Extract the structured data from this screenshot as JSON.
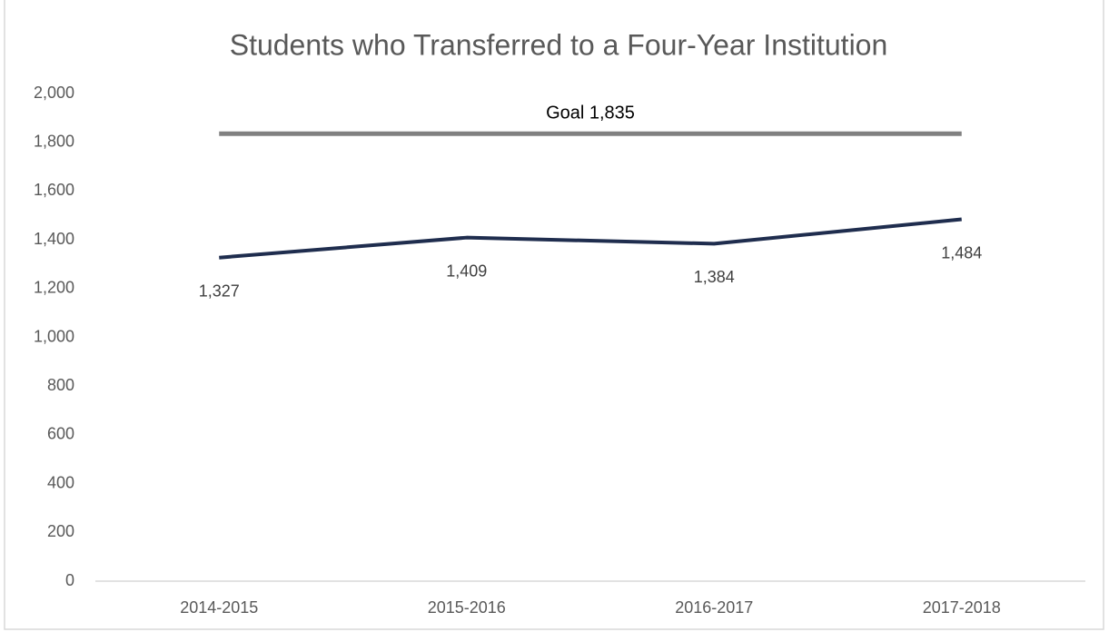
{
  "chart_data": {
    "type": "line",
    "title": "Students who Transferred to a Four-Year Institution",
    "categories": [
      "2014-2015",
      "2015-2016",
      "2016-2017",
      "2017-2018"
    ],
    "series": [
      {
        "color": "#1f2d4e",
        "values": [
          1327,
          1409,
          1384,
          1484
        ],
        "value_labels": [
          "1,327",
          "1,409",
          "1,384",
          "1,484"
        ]
      },
      {
        "color": "#808080",
        "values": [
          1835,
          1835,
          1835,
          1835
        ]
      }
    ],
    "annotation": "Goal 1,835",
    "ylim": [
      0,
      2000
    ],
    "yticks": [
      0,
      200,
      400,
      600,
      800,
      {
        "value": 1000,
        "label": "1,000"
      },
      {
        "value": 1200,
        "label": "1,200"
      },
      {
        "value": 1400,
        "label": "1,400"
      },
      {
        "value": 1600,
        "label": "1,600"
      },
      {
        "value": 1800,
        "label": "1,800"
      },
      {
        "value": 2000,
        "label": "2,000"
      }
    ],
    "grid": false
  }
}
